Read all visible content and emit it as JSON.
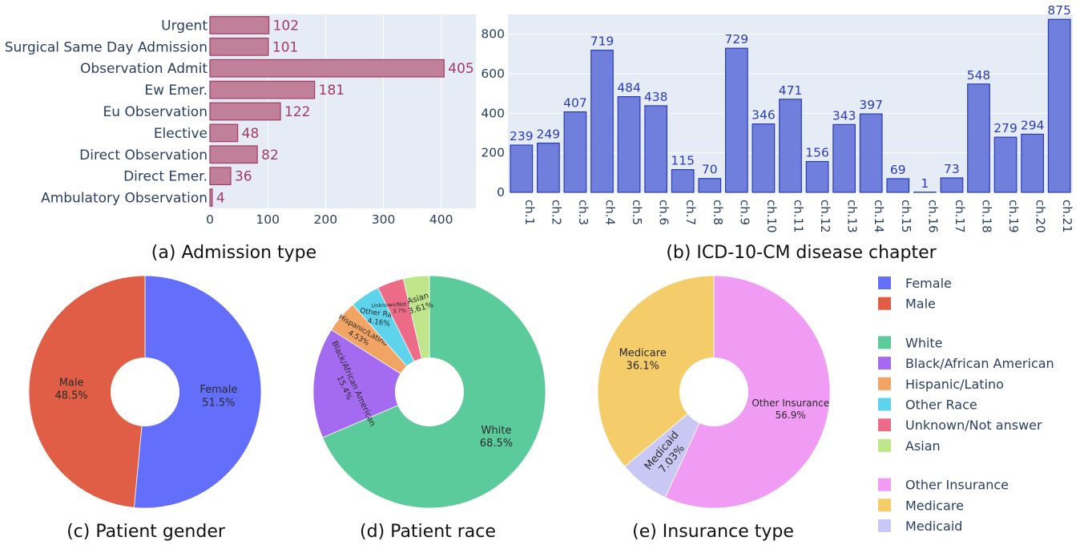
{
  "captions": {
    "a": "(a) Admission type",
    "b": "(b) ICD-10-CM disease chapter",
    "c": "(c) Patient gender",
    "d": "(d) Patient race",
    "e": "(e) Insurance type"
  },
  "chart_data": [
    {
      "id": "a",
      "type": "bar",
      "orientation": "horizontal",
      "title": "(a) Admission type",
      "categories": [
        "Urgent",
        "Surgical Same Day Admission",
        "Observation Admit",
        "Ew Emer.",
        "Eu Observation",
        "Elective",
        "Direct Observation",
        "Direct Emer.",
        "Ambulatory Observation"
      ],
      "values": [
        102,
        101,
        405,
        181,
        122,
        48,
        82,
        36,
        4
      ],
      "xticks": [
        0,
        100,
        200,
        300,
        400
      ],
      "xlim": [
        0,
        460
      ],
      "grid": true,
      "color": "#c0809a",
      "edge_color": "#a03b66",
      "label_color": "#a03b66"
    },
    {
      "id": "b",
      "type": "bar",
      "title": "(b) ICD-10-CM disease chapter",
      "categories": [
        "ch.1",
        "ch.2",
        "ch.3",
        "ch.4",
        "ch.5",
        "ch.6",
        "ch.7",
        "ch.8",
        "ch.9",
        "ch.10",
        "ch.11",
        "ch.12",
        "ch.13",
        "ch.14",
        "ch.15",
        "ch.16",
        "ch.17",
        "ch.18",
        "ch.19",
        "ch.20",
        "ch.21"
      ],
      "values": [
        239,
        249,
        407,
        719,
        484,
        438,
        115,
        70,
        729,
        346,
        471,
        156,
        343,
        397,
        69,
        1,
        73,
        548,
        279,
        294,
        875
      ],
      "yticks": [
        0,
        200,
        400,
        600,
        800
      ],
      "ylim": [
        0,
        900
      ],
      "grid": true,
      "color": "#6f7fdb",
      "edge_color": "#2a3cb8",
      "label_color": "#2a3cb8"
    },
    {
      "id": "c",
      "type": "pie",
      "title": "(c) Patient gender",
      "hole": true,
      "slices": [
        {
          "label": "Female",
          "value": 51.5,
          "pct": "51.5%",
          "color": "#636efa"
        },
        {
          "label": "Male",
          "value": 48.5,
          "pct": "48.5%",
          "color": "#e05e45"
        }
      ]
    },
    {
      "id": "d",
      "type": "pie",
      "title": "(d) Patient race",
      "hole": true,
      "slices": [
        {
          "label": "White",
          "value": 68.5,
          "pct": "68.5%",
          "color": "#5ccb9b"
        },
        {
          "label": "Black/African American",
          "value": 15.4,
          "pct": "15.4%",
          "color": "#a46af0"
        },
        {
          "label": "Hispanic/Latino",
          "value": 4.53,
          "pct": "4.53%",
          "color": "#f2a465"
        },
        {
          "label": "Other Race",
          "value": 4.16,
          "pct": "4.16%",
          "color": "#5ed4ec"
        },
        {
          "label": "Unknown/Not answer",
          "value": 3.7,
          "pct": "3.7%",
          "color": "#ec6b86"
        },
        {
          "label": "Asian",
          "value": 3.61,
          "pct": "3.61%",
          "color": "#bfe68a"
        }
      ]
    },
    {
      "id": "e",
      "type": "pie",
      "title": "(e) Insurance type",
      "hole": true,
      "slices": [
        {
          "label": "Other Insurance",
          "value": 56.9,
          "pct": "56.9%",
          "color": "#f09cf5"
        },
        {
          "label": "Medicaid",
          "value": 7.03,
          "pct": "7.03%",
          "color": "#c9c8f4"
        },
        {
          "label": "Medicare",
          "value": 36.1,
          "pct": "36.1%",
          "color": "#f5cc6a"
        }
      ]
    }
  ],
  "legend": {
    "placement": "right",
    "groups": [
      [
        {
          "label": "Female",
          "color": "#636efa"
        },
        {
          "label": "Male",
          "color": "#e05e45"
        }
      ],
      [
        {
          "label": "White",
          "color": "#5ccb9b"
        },
        {
          "label": "Black/African American",
          "color": "#a46af0"
        },
        {
          "label": "Hispanic/Latino",
          "color": "#f2a465"
        },
        {
          "label": "Other Race",
          "color": "#5ed4ec"
        },
        {
          "label": "Unknown/Not answer",
          "color": "#ec6b86"
        },
        {
          "label": "Asian",
          "color": "#bfe68a"
        }
      ],
      [
        {
          "label": "Other Insurance",
          "color": "#f09cf5"
        },
        {
          "label": "Medicare",
          "color": "#f5cc6a"
        },
        {
          "label": "Medicaid",
          "color": "#c9c8f4"
        }
      ]
    ]
  },
  "colors": {
    "plot_background": "#e5ecf6",
    "grid": "#ffffff",
    "axis_text": "#2a3f5f"
  }
}
